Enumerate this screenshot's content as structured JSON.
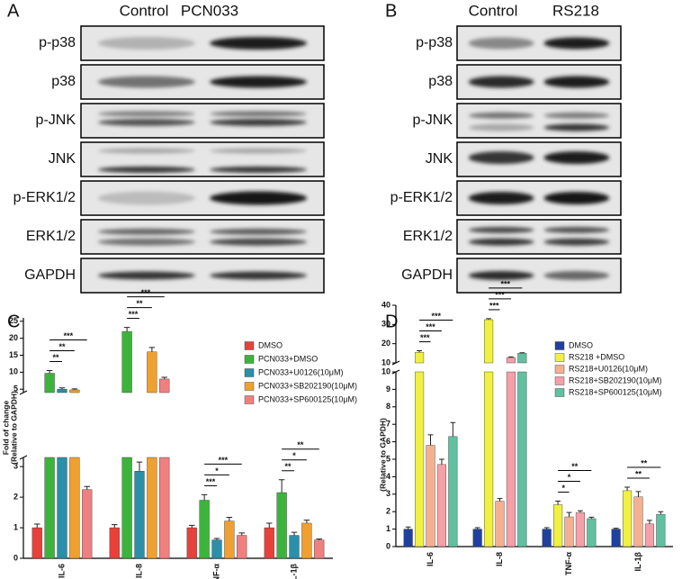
{
  "blots": [
    {
      "panel": "A",
      "columns": [
        "Control",
        "PCN033"
      ],
      "rows": [
        "p-p38",
        "p38",
        "p-JNK",
        "JNK",
        "p-ERK1/2",
        "ERK1/2",
        "GAPDH"
      ]
    },
    {
      "panel": "B",
      "columns": [
        "Control",
        "RS218"
      ],
      "rows": [
        "p-p38",
        "p38",
        "p-JNK",
        "JNK",
        "p-ERK1/2",
        "ERK1/2",
        "GAPDH"
      ]
    }
  ],
  "chart_data": [
    {
      "type": "bar",
      "label": "C",
      "ylabel": [
        "Fold of change",
        "(Relative to GAPDH)"
      ],
      "categories": [
        "IL-6",
        "IL-8",
        "TNF-α",
        "IL-1β"
      ],
      "segments": [
        {
          "ylim": [
            0,
            3.3
          ],
          "yticks": [
            0,
            1,
            2,
            3
          ]
        },
        {
          "ylim": [
            4,
            26
          ],
          "yticks": [
            5,
            10,
            15,
            20,
            25
          ]
        }
      ],
      "legend": "upper right",
      "series": [
        {
          "name": "DMSO",
          "color": "#e8413c",
          "values": [
            1.0,
            1.0,
            1.0,
            1.0
          ],
          "errors": [
            0.12,
            0.1,
            0.08,
            0.15
          ]
        },
        {
          "name": "PCN033+DMSO",
          "color": "#3cb43c",
          "values": [
            9.7,
            22,
            1.9,
            2.15
          ],
          "errors": [
            0.8,
            1.2,
            0.18,
            0.42
          ]
        },
        {
          "name": "PCN033+U0126(10μM)",
          "color": "#2a8fa8",
          "values": [
            5.0,
            2.85,
            0.6,
            0.75
          ],
          "errors": [
            0.4,
            0.3,
            0.05,
            0.1
          ]
        },
        {
          "name": "PCN033+SB202190(10μM)",
          "color": "#f0a030",
          "values": [
            4.8,
            16,
            1.22,
            1.15
          ],
          "errors": [
            0.3,
            1.3,
            0.12,
            0.1
          ]
        },
        {
          "name": "PCN033+SP600125(10μM)",
          "color": "#f08080",
          "values": [
            2.25,
            8.0,
            0.75,
            0.6
          ],
          "errors": [
            0.1,
            0.5,
            0.08,
            0.03
          ]
        }
      ],
      "annotations": [
        {
          "category": 0,
          "series": [
            1,
            2
          ],
          "label": "**"
        },
        {
          "category": 0,
          "series": [
            1,
            3
          ],
          "label": "**"
        },
        {
          "category": 0,
          "series": [
            1,
            4
          ],
          "label": "***"
        },
        {
          "category": 1,
          "series": [
            1,
            2
          ],
          "label": "***"
        },
        {
          "category": 1,
          "series": [
            1,
            3
          ],
          "label": "**"
        },
        {
          "category": 1,
          "series": [
            1,
            4
          ],
          "label": "***"
        },
        {
          "category": 2,
          "series": [
            1,
            2
          ],
          "label": "***"
        },
        {
          "category": 2,
          "series": [
            1,
            3
          ],
          "label": "*"
        },
        {
          "category": 2,
          "series": [
            1,
            4
          ],
          "label": "***"
        },
        {
          "category": 3,
          "series": [
            1,
            2
          ],
          "label": "**"
        },
        {
          "category": 3,
          "series": [
            1,
            3
          ],
          "label": "*"
        },
        {
          "category": 3,
          "series": [
            1,
            4
          ],
          "label": "**"
        }
      ]
    },
    {
      "type": "bar",
      "label": "D",
      "ylabel": [
        "(Relative to GAPDH)"
      ],
      "categories": [
        "IL-6",
        "IL-8",
        "TNF-α",
        "IL-1β"
      ],
      "segments": [
        {
          "ylim": [
            0,
            10
          ],
          "yticks": [
            0,
            1,
            2,
            3,
            4,
            5,
            6,
            7,
            8,
            9,
            10
          ]
        },
        {
          "ylim": [
            10,
            40
          ],
          "yticks": [
            10,
            20,
            30,
            40
          ]
        }
      ],
      "legend": "upper right",
      "series": [
        {
          "name": "DMSO",
          "color": "#2040a0",
          "values": [
            1.0,
            1.0,
            1.0,
            1.0
          ],
          "errors": [
            0.12,
            0.08,
            0.08,
            0.05
          ]
        },
        {
          "name": "RS218 +DMSO",
          "color": "#f0f040",
          "values": [
            15.5,
            32.5,
            2.4,
            3.2
          ],
          "errors": [
            0.8,
            0.5,
            0.2,
            0.2
          ]
        },
        {
          "name": "RS218+U0126(10μM)",
          "color": "#f5b090",
          "values": [
            5.8,
            2.6,
            1.7,
            2.85
          ],
          "errors": [
            0.6,
            0.15,
            0.25,
            0.3
          ]
        },
        {
          "name": "RS218+SB202190(10μM)",
          "color": "#f5a0a8",
          "values": [
            4.7,
            12.8,
            1.95,
            1.3
          ],
          "errors": [
            0.3,
            0.3,
            0.1,
            0.2
          ]
        },
        {
          "name": "RS218+SP600125(10μM)",
          "color": "#60c0a0",
          "values": [
            6.3,
            15.0,
            1.6,
            1.85
          ],
          "errors": [
            0.8,
            0.3,
            0.08,
            0.15
          ]
        }
      ],
      "annotations": [
        {
          "category": 0,
          "series": [
            1,
            2
          ],
          "label": "***"
        },
        {
          "category": 0,
          "series": [
            1,
            3
          ],
          "label": "***"
        },
        {
          "category": 0,
          "series": [
            1,
            4
          ],
          "label": "***"
        },
        {
          "category": 1,
          "series": [
            1,
            2
          ],
          "label": "***"
        },
        {
          "category": 1,
          "series": [
            1,
            3
          ],
          "label": "***"
        },
        {
          "category": 1,
          "series": [
            1,
            4
          ],
          "label": "***"
        },
        {
          "category": 2,
          "series": [
            1,
            2
          ],
          "label": "*"
        },
        {
          "category": 2,
          "series": [
            1,
            3
          ],
          "label": "*"
        },
        {
          "category": 2,
          "series": [
            1,
            4
          ],
          "label": "**"
        },
        {
          "category": 3,
          "series": [
            1,
            3
          ],
          "label": "**"
        },
        {
          "category": 3,
          "series": [
            1,
            4
          ],
          "label": "**"
        }
      ]
    }
  ]
}
